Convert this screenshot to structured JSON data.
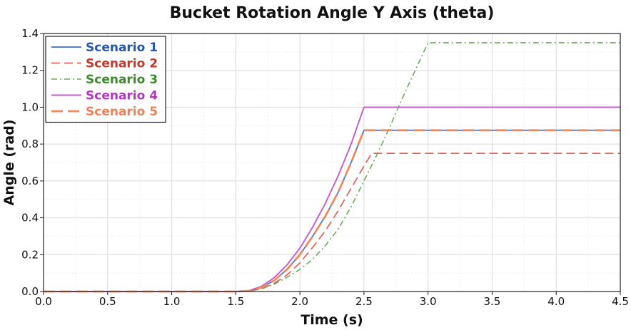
{
  "chart_data": {
    "type": "line",
    "title": "Bucket Rotation Angle Y Axis (theta)",
    "xlabel": "Time (s)",
    "ylabel": "Angle (rad)",
    "xlim": [
      0,
      4.5
    ],
    "ylim": [
      0,
      1.4
    ],
    "xticks": [
      "0.0",
      "0.5",
      "1.0",
      "1.5",
      "2.0",
      "2.5",
      "3.0",
      "3.5",
      "4.0",
      "4.5"
    ],
    "yticks": [
      "0.0",
      "0.2",
      "0.4",
      "0.6",
      "0.8",
      "1.0",
      "1.2",
      "1.4"
    ],
    "grid": true,
    "legend_position": "top-left",
    "series": [
      {
        "name": "Scenario 1",
        "color": "#4f7fd6",
        "label_color": "#2456b8",
        "dash": "solid",
        "x": [
          0,
          1.5,
          1.6,
          1.7,
          1.8,
          1.9,
          2.0,
          2.1,
          2.2,
          2.3,
          2.4,
          2.5,
          4.5
        ],
        "y": [
          0,
          0,
          0.003,
          0.022,
          0.06,
          0.12,
          0.2,
          0.3,
          0.41,
          0.54,
          0.7,
          0.875,
          0.875
        ]
      },
      {
        "name": "Scenario 2",
        "color": "#e0685a",
        "label_color": "#c8352a",
        "dash": "long-dash",
        "x": [
          0,
          1.5,
          1.6,
          1.7,
          1.8,
          1.9,
          2.0,
          2.1,
          2.2,
          2.3,
          2.4,
          2.5,
          2.56,
          4.5
        ],
        "y": [
          0,
          0,
          0.002,
          0.015,
          0.045,
          0.09,
          0.155,
          0.24,
          0.33,
          0.44,
          0.56,
          0.68,
          0.75,
          0.75
        ]
      },
      {
        "name": "Scenario 3",
        "color": "#6aaa5a",
        "label_color": "#3d8a2e",
        "dash": "dash-dot",
        "x": [
          0,
          1.5,
          1.6,
          1.7,
          1.8,
          1.9,
          2.0,
          2.1,
          2.2,
          2.3,
          2.4,
          2.5,
          2.6,
          2.7,
          2.8,
          2.9,
          3.0,
          4.5
        ],
        "y": [
          0,
          0,
          0.002,
          0.014,
          0.04,
          0.077,
          0.12,
          0.175,
          0.25,
          0.34,
          0.46,
          0.6,
          0.74,
          0.89,
          1.05,
          1.2,
          1.35,
          1.35
        ]
      },
      {
        "name": "Scenario 4",
        "color": "#c45ad0",
        "label_color": "#b236c2",
        "dash": "solid",
        "x": [
          0,
          1.5,
          1.6,
          1.7,
          1.8,
          1.9,
          2.0,
          2.1,
          2.2,
          2.3,
          2.4,
          2.5,
          4.5
        ],
        "y": [
          0,
          0,
          0.004,
          0.028,
          0.075,
          0.145,
          0.235,
          0.35,
          0.48,
          0.63,
          0.8,
          1.0,
          1.0
        ]
      },
      {
        "name": "Scenario 5",
        "color": "#f08a5e",
        "label_color": "#ee8055",
        "dash": "long-dash-thick",
        "x": [
          0,
          1.5,
          1.6,
          1.7,
          1.8,
          1.9,
          2.0,
          2.1,
          2.2,
          2.3,
          2.4,
          2.5,
          4.5
        ],
        "y": [
          0,
          0,
          0.003,
          0.022,
          0.06,
          0.12,
          0.2,
          0.3,
          0.41,
          0.54,
          0.7,
          0.875,
          0.875
        ]
      }
    ]
  }
}
